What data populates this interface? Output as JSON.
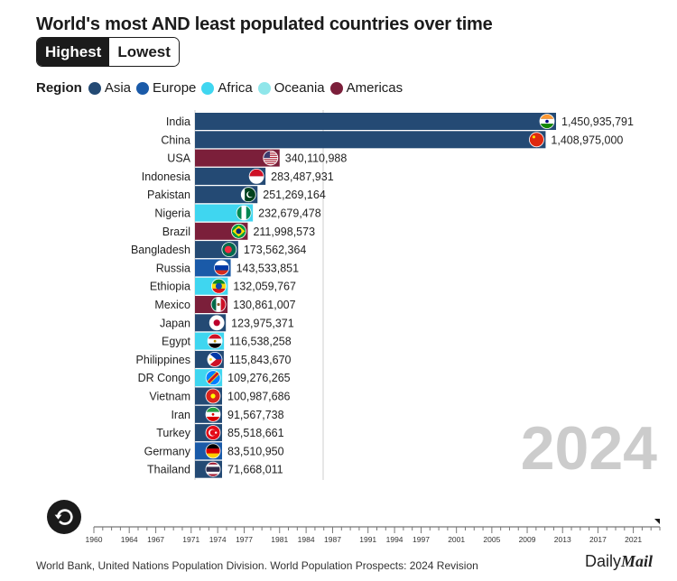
{
  "header": {
    "title": "World's most AND least populated countries over time",
    "toggle": {
      "highest": "Highest",
      "lowest": "Lowest",
      "active": "highest"
    }
  },
  "legend": {
    "title": "Region",
    "items": [
      {
        "label": "Asia",
        "color": "#244a74"
      },
      {
        "label": "Europe",
        "color": "#1a5aa8"
      },
      {
        "label": "Africa",
        "color": "#3fd6f0"
      },
      {
        "label": "Oceania",
        "color": "#8fe6ea"
      },
      {
        "label": "Americas",
        "color": "#7b1f3a"
      }
    ]
  },
  "chart_data": {
    "type": "bar",
    "orientation": "horizontal",
    "title": "World's most AND least populated countries over time",
    "year": "2024",
    "xlim": [
      0,
      1450935791
    ],
    "categories": [
      "India",
      "China",
      "USA",
      "Indonesia",
      "Pakistan",
      "Nigeria",
      "Brazil",
      "Bangladesh",
      "Russia",
      "Ethiopia",
      "Mexico",
      "Japan",
      "Egypt",
      "Philippines",
      "DR Congo",
      "Vietnam",
      "Iran",
      "Turkey",
      "Germany",
      "Thailand"
    ],
    "values": [
      1450935791,
      1408975000,
      340110988,
      283487931,
      251269164,
      232679478,
      211998573,
      173562364,
      143533851,
      132059767,
      130861007,
      123975371,
      116538258,
      115843670,
      109276265,
      100987686,
      91567738,
      85518661,
      83510950,
      71668011
    ],
    "labels": [
      "1,450,935,791",
      "1,408,975,000",
      "340,110,988",
      "283,487,931",
      "251,269,164",
      "232,679,478",
      "211,998,573",
      "173,562,364",
      "143,533,851",
      "132,059,767",
      "130,861,007",
      "123,975,371",
      "116,538,258",
      "115,843,670",
      "109,276,265",
      "100,987,686",
      "91,567,738",
      "85,518,661",
      "83,510,950",
      "71,668,011"
    ],
    "regions": [
      "Asia",
      "Asia",
      "Americas",
      "Asia",
      "Asia",
      "Africa",
      "Americas",
      "Asia",
      "Europe",
      "Africa",
      "Americas",
      "Asia",
      "Africa",
      "Asia",
      "Africa",
      "Asia",
      "Asia",
      "Asia",
      "Europe",
      "Asia"
    ],
    "flag_icons": [
      "india-flag-icon",
      "china-flag-icon",
      "usa-flag-icon",
      "indonesia-flag-icon",
      "pakistan-flag-icon",
      "nigeria-flag-icon",
      "brazil-flag-icon",
      "bangladesh-flag-icon",
      "russia-flag-icon",
      "ethiopia-flag-icon",
      "mexico-flag-icon",
      "japan-flag-icon",
      "egypt-flag-icon",
      "philippines-flag-icon",
      "dr-congo-flag-icon",
      "vietnam-flag-icon",
      "iran-flag-icon",
      "turkey-flag-icon",
      "germany-flag-icon",
      "thailand-flag-icon"
    ],
    "timeline": {
      "start": 1960,
      "end": 2024,
      "current": 2024,
      "tick_labels": [
        "1960",
        "1964",
        "1967",
        "1971",
        "1974",
        "1977",
        "1981",
        "1984",
        "1987",
        "1991",
        "1994",
        "1997",
        "2001",
        "2005",
        "2009",
        "2013",
        "2017",
        "2021"
      ]
    }
  },
  "footer": {
    "source": "World Bank, United Nations Population Division. World Population Prospects: 2024 Revision",
    "logo_daily": "Daily",
    "logo_mail": "Mail"
  },
  "icons": {
    "replay": "replay-icon"
  }
}
